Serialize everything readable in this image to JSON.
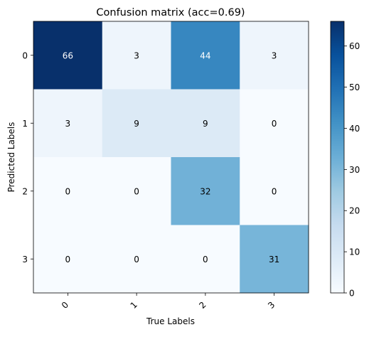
{
  "chart_data": {
    "type": "heatmap",
    "title": "Confusion matrix (acc=0.69)",
    "xlabel": "True Labels",
    "ylabel": "Predicted Labels",
    "x_tick_labels": [
      "0",
      "1",
      "2",
      "3"
    ],
    "y_tick_labels": [
      "0",
      "1",
      "2",
      "3"
    ],
    "matrix": [
      [
        66,
        3,
        44,
        3
      ],
      [
        3,
        9,
        9,
        0
      ],
      [
        0,
        0,
        32,
        0
      ],
      [
        0,
        0,
        0,
        31
      ]
    ],
    "colormap": "Blues",
    "colorbar": {
      "min": 0,
      "max": 66,
      "ticks": [
        0,
        10,
        20,
        30,
        40,
        50,
        60
      ],
      "tick_labels": [
        "0",
        "10",
        "20",
        "30",
        "40",
        "50",
        "60"
      ]
    },
    "x_tick_rotation_deg": 45,
    "grid": false
  }
}
